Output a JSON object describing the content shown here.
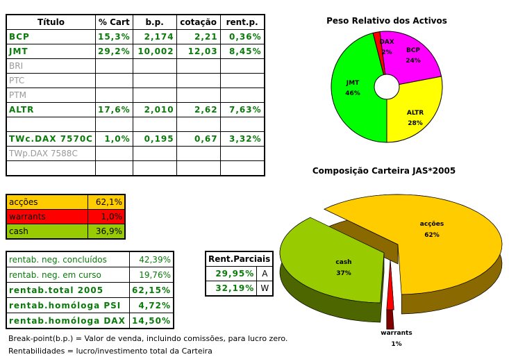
{
  "holdings": {
    "headers": [
      "Título",
      "% Cart",
      "b.p.",
      "cotação",
      "rent.p."
    ],
    "rows": [
      {
        "name": "BCP",
        "active": true,
        "cells": [
          "15,3%",
          "2,174",
          "2,21",
          "0,36%"
        ]
      },
      {
        "name": "JMT",
        "active": true,
        "cells": [
          "29,2%",
          "10,002",
          "12,03",
          "8,45%"
        ]
      },
      {
        "name": "BRI",
        "active": false,
        "cells": [
          "",
          "",
          "",
          ""
        ]
      },
      {
        "name": "PTC",
        "active": false,
        "cells": [
          "",
          "",
          "",
          ""
        ]
      },
      {
        "name": "PTM",
        "active": false,
        "cells": [
          "",
          "",
          "",
          ""
        ]
      },
      {
        "name": "ALTR",
        "active": true,
        "cells": [
          "17,6%",
          "2,010",
          "2,62",
          "7,63%"
        ]
      },
      {
        "name": "",
        "active": false,
        "cells": [
          "",
          "",
          "",
          ""
        ]
      },
      {
        "name": "TWc.DAX 7570C",
        "active": true,
        "cells": [
          "1,0%",
          "0,195",
          "0,67",
          "3,32%"
        ]
      },
      {
        "name": "TWp.DAX 7588C",
        "active": false,
        "cells": [
          "",
          "",
          "",
          ""
        ]
      },
      {
        "name": "",
        "active": false,
        "cells": [
          "",
          "",
          "",
          ""
        ]
      }
    ]
  },
  "allocation": [
    {
      "label": "acções",
      "value": "62,1%",
      "color": "#ffcc00"
    },
    {
      "label": "warrants",
      "value": "1,0%",
      "color": "#ff0000"
    },
    {
      "label": "cash",
      "value": "36,9%",
      "color": "#99cc00"
    }
  ],
  "returns": [
    {
      "label": "rentab. neg. concluídos",
      "value": "42,39%",
      "bold": false
    },
    {
      "label": "rentab. neg. em curso",
      "value": "19,76%",
      "bold": false
    },
    {
      "label": "rentab.total 2005",
      "value": "62,15%",
      "bold": true
    },
    {
      "label": "rentab.homóloga PSI",
      "value": "4,72%",
      "bold": true
    },
    {
      "label": "rentab.homóloga DAX",
      "value": "14,50%",
      "bold": true
    }
  ],
  "partial": {
    "title": "Rent.Parciais",
    "rows": [
      {
        "value": "29,95%",
        "tag": "A"
      },
      {
        "value": "32,19%",
        "tag": "W"
      }
    ]
  },
  "notes": [
    "Break-point(b.p.) = Valor de venda, incluindo comissões, para lucro zero.",
    "Rentabilidades = lucro/investimento total da Carteira"
  ],
  "chart_data": [
    {
      "type": "pie",
      "title": "Peso Relativo dos Activos",
      "donut": true,
      "labels": [
        "BCP",
        "ALTR",
        "JMT",
        "DAX"
      ],
      "values": [
        24,
        28,
        46,
        2
      ],
      "value_labels": [
        "24%",
        "28%",
        "46%",
        "2%"
      ],
      "colors": [
        "#ff00ff",
        "#ffff00",
        "#00ff00",
        "#ff0000"
      ]
    },
    {
      "type": "pie",
      "title": "Composição Carteira JAS*2005",
      "style": "3d-exploded",
      "labels": [
        "acções",
        "warrants",
        "cash"
      ],
      "values": [
        62,
        1,
        37
      ],
      "value_labels": [
        "62%",
        "1%",
        "37%"
      ],
      "colors": [
        "#ffcc00",
        "#ff0000",
        "#99cc00"
      ]
    }
  ]
}
